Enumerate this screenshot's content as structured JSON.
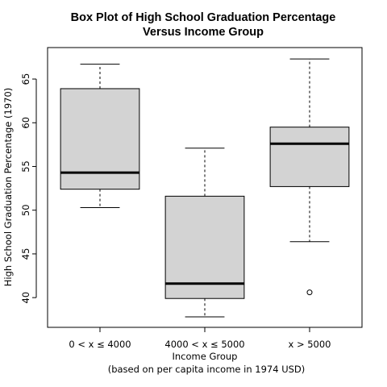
{
  "chart_data": {
    "type": "box",
    "title_lines": [
      "Box Plot of High School Graduation Percentage",
      "Versus Income Group"
    ],
    "xlabel": "Income Group",
    "xlabel_sub": "(based on per capita income in 1974 USD)",
    "ylabel": "High School Graduation Percentage (1970)",
    "ylim": [
      36.6,
      68.6
    ],
    "yticks": [
      40,
      45,
      50,
      55,
      60,
      65
    ],
    "categories": [
      "0 < x ≤ 4000",
      "4000 < x ≤ 5000",
      "x > 5000"
    ],
    "boxes": [
      {
        "category": "0 < x ≤ 4000",
        "min": 50.3,
        "q1": 52.4,
        "median": 54.3,
        "q3": 63.9,
        "max": 66.7,
        "outliers": []
      },
      {
        "category": "4000 < x ≤ 5000",
        "min": 37.8,
        "q1": 39.9,
        "median": 41.6,
        "q3": 51.6,
        "max": 57.1,
        "outliers": []
      },
      {
        "category": "x > 5000",
        "min": 46.4,
        "q1": 52.7,
        "median": 57.6,
        "q3": 59.5,
        "max": 67.3,
        "outliers": [
          40.6
        ]
      }
    ],
    "colors": {
      "box_fill": "#d3d3d3",
      "stroke": "#000000"
    }
  }
}
